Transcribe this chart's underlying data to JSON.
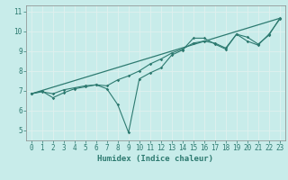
{
  "xlabel": "Humidex (Indice chaleur)",
  "bg_color": "#c8ecea",
  "grid_color": "#e0f0ee",
  "line_color": "#2d7a70",
  "spine_color": "#888888",
  "tick_color": "#2d7a70",
  "xlim": [
    -0.5,
    23.5
  ],
  "ylim": [
    4.5,
    11.3
  ],
  "xticks": [
    0,
    1,
    2,
    3,
    4,
    5,
    6,
    7,
    8,
    9,
    10,
    11,
    12,
    13,
    14,
    15,
    16,
    17,
    18,
    19,
    20,
    21,
    22,
    23
  ],
  "yticks": [
    5,
    6,
    7,
    8,
    9,
    10,
    11
  ],
  "line1_x": [
    0,
    1,
    2,
    3,
    4,
    5,
    6,
    7,
    8,
    9,
    10,
    11,
    12,
    13,
    14,
    15,
    16,
    17,
    18,
    19,
    20,
    21,
    22,
    23
  ],
  "line1_y": [
    6.85,
    6.98,
    6.65,
    6.9,
    7.1,
    7.2,
    7.3,
    7.1,
    6.3,
    4.9,
    7.6,
    7.9,
    8.15,
    8.8,
    9.05,
    9.65,
    9.65,
    9.35,
    9.1,
    9.85,
    9.5,
    9.3,
    9.85,
    10.6
  ],
  "line2_x": [
    0,
    1,
    2,
    3,
    4,
    5,
    6,
    7,
    8,
    9,
    10,
    11,
    12,
    13,
    14,
    15,
    16,
    17,
    18,
    19,
    20,
    21,
    22,
    23
  ],
  "line2_y": [
    6.85,
    6.95,
    6.85,
    7.05,
    7.15,
    7.25,
    7.3,
    7.25,
    7.55,
    7.75,
    8.0,
    8.35,
    8.6,
    8.9,
    9.1,
    9.4,
    9.5,
    9.4,
    9.15,
    9.85,
    9.7,
    9.35,
    9.8,
    10.65
  ],
  "trend_x": [
    0,
    23
  ],
  "trend_y": [
    6.85,
    10.65
  ],
  "xlabel_fontsize": 6.5,
  "tick_fontsize": 5.5
}
